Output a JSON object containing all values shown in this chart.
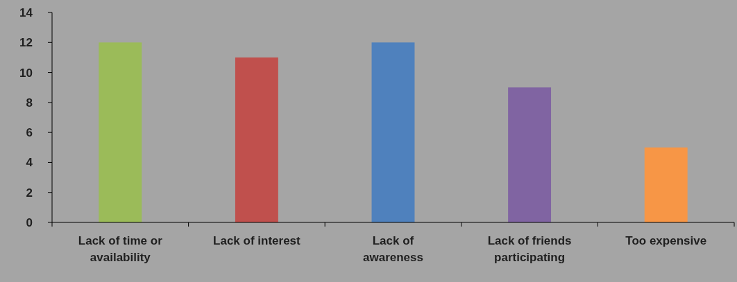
{
  "chart_data": {
    "type": "bar",
    "categories": [
      "Lack of time or availability",
      "Lack of interest",
      "Lack of awareness",
      "Lack of friends participating",
      "Too expensive"
    ],
    "values": [
      12,
      11,
      12,
      9,
      5
    ],
    "colors": [
      "#9bbb59",
      "#c0504d",
      "#4f81bd",
      "#8064a2",
      "#f79646"
    ],
    "ylim": [
      0,
      14
    ],
    "yticks": [
      0,
      2,
      4,
      6,
      8,
      10,
      12,
      14
    ]
  }
}
